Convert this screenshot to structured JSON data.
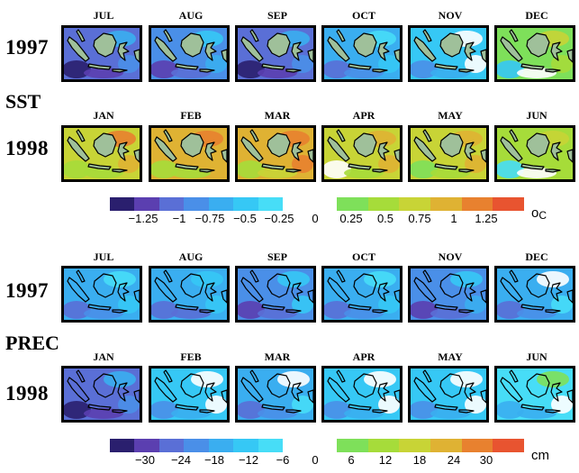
{
  "sst": {
    "label": "SST",
    "rows": [
      {
        "year": "1997",
        "months": [
          "JUL",
          "AUG",
          "SEP",
          "OCT",
          "NOV",
          "DEC"
        ],
        "anomaly": [
          -0.9,
          -0.75,
          -0.95,
          -0.55,
          -0.3,
          0.15
        ]
      },
      {
        "year": "1998",
        "months": [
          "JAN",
          "FEB",
          "MAR",
          "APR",
          "MAY",
          "JUN"
        ],
        "anomaly": [
          0.7,
          0.75,
          0.85,
          0.55,
          0.6,
          0.25
        ]
      }
    ],
    "colorbar": {
      "neg_colors": [
        "#2a1f6e",
        "#5b3fb0",
        "#5a6fd6",
        "#4a8fe8",
        "#3aaef0",
        "#36c8f5",
        "#47ddf7"
      ],
      "pos_colors": [
        "#7ee05a",
        "#a6dc3a",
        "#c8d436",
        "#dfb233",
        "#e8812f",
        "#e85430"
      ],
      "neg_ticks": [
        "−1.25",
        "−1",
        "−0.75",
        "−0.5",
        "−0.25"
      ],
      "zero": "0",
      "pos_ticks": [
        "0.25",
        "0.5",
        "0.75",
        "1",
        "1.25"
      ],
      "unit_main": "o",
      "unit_sub": "C"
    }
  },
  "prec": {
    "label": "PREC",
    "rows": [
      {
        "year": "1997",
        "months": [
          "JUL",
          "AUG",
          "SEP",
          "OCT",
          "NOV",
          "DEC"
        ],
        "anomaly": [
          -12,
          -14,
          -15,
          -13,
          -16,
          -10
        ]
      },
      {
        "year": "1998",
        "months": [
          "JAN",
          "FEB",
          "MAR",
          "APR",
          "MAY",
          "JUN"
        ],
        "anomaly": [
          -22,
          -8,
          -10,
          -6,
          -6,
          -4
        ]
      }
    ],
    "colorbar": {
      "neg_colors": [
        "#2a1f6e",
        "#5b3fb0",
        "#5a6fd6",
        "#4a8fe8",
        "#3aaef0",
        "#36c8f5",
        "#47ddf7"
      ],
      "pos_colors": [
        "#7ee05a",
        "#a6dc3a",
        "#c8d436",
        "#dfb233",
        "#e8812f",
        "#e85430"
      ],
      "neg_ticks": [
        "−30",
        "−24",
        "−18",
        "−12",
        "−6"
      ],
      "zero": "0",
      "pos_ticks": [
        "6",
        "12",
        "18",
        "24",
        "30"
      ],
      "unit_main": "cm",
      "unit_sub": ""
    }
  },
  "land_color": "#9fc09a"
}
